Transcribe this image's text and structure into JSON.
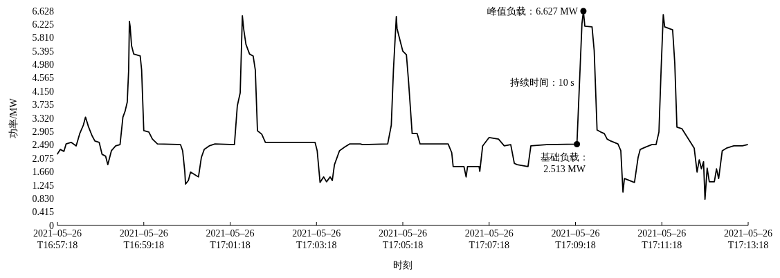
{
  "chart_data": {
    "type": "line",
    "xlabel": "时刻",
    "ylabel": "功率/MW",
    "xlim": [
      "2021-05-26T16:57:18",
      "2021-05-26T17:13:18"
    ],
    "xticks": [
      {
        "value": "2021-05-26T16:57:18",
        "label": "2021–05–26 T16:57:18"
      },
      {
        "value": "2021-05-26T16:59:18",
        "label": "2021–05–26 T16:59:18"
      },
      {
        "value": "2021-05-26T17:01:18",
        "label": "2021–05–26 T17:01:18"
      },
      {
        "value": "2021-05-26T17:03:18",
        "label": "2021–05–26 T17:03:18"
      },
      {
        "value": "2021-05-26T17:05:18",
        "label": "2021–05–26 T17:05:18"
      },
      {
        "value": "2021-05-26T17:07:18",
        "label": "2021–05–26 T17:07:18"
      },
      {
        "value": "2021-05-26T17:09:18",
        "label": "2021–05–26 T17:09:18"
      },
      {
        "value": "2021-05-26T17:11:18",
        "label": "2021–05–26 T17:11:18"
      },
      {
        "value": "2021-05-26T17:13:18",
        "label": "2021–05–26 T17:13:18"
      }
    ],
    "ylim": [
      0,
      6.628
    ],
    "yticks": [
      0,
      0.415,
      {
        "value": 0.83,
        "label": "0.830"
      },
      1.245,
      {
        "value": 1.66,
        "label": "1.660"
      },
      2.075,
      {
        "value": 2.49,
        "label": "2.490"
      },
      2.905,
      {
        "value": 3.32,
        "label": "3.320"
      },
      3.735,
      {
        "value": 4.15,
        "label": "4.150"
      },
      4.565,
      {
        "value": 4.98,
        "label": "4.980"
      },
      5.395,
      {
        "value": 5.81,
        "label": "5.810"
      },
      6.225,
      6.628
    ],
    "grid": false,
    "series": [
      {
        "color": "#000000",
        "marker": "none",
        "line_style": "solid",
        "x": [
          "2021-05-26T16:57:18",
          "2021-05-26T16:57:22",
          "2021-05-26T16:57:27",
          "2021-05-26T16:57:30",
          "2021-05-26T16:57:37",
          "2021-05-26T16:57:44",
          "2021-05-26T16:57:49",
          "2021-05-26T16:57:54",
          "2021-05-26T16:57:57",
          "2021-05-26T16:58:01",
          "2021-05-26T16:58:06",
          "2021-05-26T16:58:10",
          "2021-05-26T16:58:16",
          "2021-05-26T16:58:20",
          "2021-05-26T16:58:25",
          "2021-05-26T16:58:28",
          "2021-05-26T16:58:33",
          "2021-05-26T16:58:39",
          "2021-05-26T16:58:45",
          "2021-05-26T16:58:49",
          "2021-05-26T16:58:52",
          "2021-05-26T16:58:55",
          "2021-05-26T16:58:57",
          "2021-05-26T16:58:58",
          "2021-05-26T16:58:59",
          "2021-05-26T16:59:01",
          "2021-05-26T16:59:04",
          "2021-05-26T16:59:13",
          "2021-05-26T16:59:15",
          "2021-05-26T16:59:18",
          "2021-05-26T16:59:25",
          "2021-05-26T16:59:30",
          "2021-05-26T16:59:37",
          "2021-05-26T17:00:09",
          "2021-05-26T17:00:12",
          "2021-05-26T17:00:15",
          "2021-05-26T17:00:16",
          "2021-05-26T17:00:20",
          "2021-05-26T17:00:23",
          "2021-05-26T17:00:31",
          "2021-05-26T17:00:34",
          "2021-05-26T17:00:38",
          "2021-05-26T17:00:42",
          "2021-05-26T17:00:49",
          "2021-05-26T17:00:57",
          "2021-05-26T17:01:24",
          "2021-05-26T17:01:28",
          "2021-05-26T17:01:32",
          "2021-05-26T17:01:35",
          "2021-05-26T17:01:37",
          "2021-05-26T17:01:40",
          "2021-05-26T17:01:45",
          "2021-05-26T17:01:50",
          "2021-05-26T17:01:53",
          "2021-05-26T17:01:56",
          "2021-05-26T17:02:02",
          "2021-05-26T17:02:07",
          "2021-05-26T17:03:16",
          "2021-05-26T17:03:19",
          "2021-05-26T17:03:23",
          "2021-05-26T17:03:28",
          "2021-05-26T17:03:32",
          "2021-05-26T17:03:37",
          "2021-05-26T17:03:40",
          "2021-05-26T17:03:43",
          "2021-05-26T17:03:50",
          "2021-05-26T17:03:57",
          "2021-05-26T17:04:04",
          "2021-05-26T17:04:19",
          "2021-05-26T17:04:22",
          "2021-05-26T17:04:57",
          "2021-05-26T17:05:02",
          "2021-05-26T17:05:05",
          "2021-05-26T17:05:09",
          "2021-05-26T17:05:10",
          "2021-05-26T17:05:13",
          "2021-05-26T17:05:18",
          "2021-05-26T17:05:23",
          "2021-05-26T17:05:26",
          "2021-05-26T17:05:31",
          "2021-05-26T17:05:38",
          "2021-05-26T17:05:42",
          "2021-05-26T17:06:21",
          "2021-05-26T17:06:26",
          "2021-05-26T17:06:28",
          "2021-05-26T17:06:43",
          "2021-05-26T17:06:46",
          "2021-05-26T17:06:48",
          "2021-05-26T17:07:04",
          "2021-05-26T17:07:05",
          "2021-05-26T17:07:09",
          "2021-05-26T17:07:18",
          "2021-05-26T17:07:31",
          "2021-05-26T17:07:39",
          "2021-05-26T17:07:48",
          "2021-05-26T17:07:53",
          "2021-05-26T17:07:57",
          "2021-05-26T17:08:12",
          "2021-05-26T17:08:16",
          "2021-05-26T17:08:38",
          "2021-05-26T17:09:20",
          "2021-05-26T17:09:23",
          "2021-05-26T17:09:27",
          "2021-05-26T17:09:29",
          "2021-05-26T17:09:31",
          "2021-05-26T17:09:41",
          "2021-05-26T17:09:44",
          "2021-05-26T17:09:48",
          "2021-05-26T17:09:53",
          "2021-05-26T17:09:58",
          "2021-05-26T17:10:02",
          "2021-05-26T17:10:07",
          "2021-05-26T17:10:17",
          "2021-05-26T17:10:21",
          "2021-05-26T17:10:24",
          "2021-05-26T17:10:26",
          "2021-05-26T17:10:40",
          "2021-05-26T17:10:45",
          "2021-05-26T17:10:48",
          "2021-05-26T17:10:55",
          "2021-05-26T17:11:04",
          "2021-05-26T17:11:10",
          "2021-05-26T17:11:14",
          "2021-05-26T17:11:17",
          "2021-05-26T17:11:20",
          "2021-05-26T17:11:22",
          "2021-05-26T17:11:33",
          "2021-05-26T17:11:36",
          "2021-05-26T17:11:39",
          "2021-05-26T17:11:46",
          "2021-05-26T17:11:53",
          "2021-05-26T17:12:03",
          "2021-05-26T17:12:07",
          "2021-05-26T17:12:10",
          "2021-05-26T17:12:13",
          "2021-05-26T17:12:16",
          "2021-05-26T17:12:18",
          "2021-05-26T17:12:21",
          "2021-05-26T17:12:24",
          "2021-05-26T17:12:31",
          "2021-05-26T17:12:34",
          "2021-05-26T17:12:37",
          "2021-05-26T17:12:42",
          "2021-05-26T17:12:48",
          "2021-05-26T17:12:58",
          "2021-05-26T17:13:10",
          "2021-05-26T17:13:17"
        ],
        "values": [
          2.21,
          2.35,
          2.29,
          2.52,
          2.57,
          2.46,
          2.84,
          3.1,
          3.35,
          3.06,
          2.78,
          2.61,
          2.57,
          2.2,
          2.14,
          1.88,
          2.31,
          2.46,
          2.5,
          3.35,
          3.53,
          3.81,
          4.81,
          6.31,
          6.16,
          5.56,
          5.3,
          5.24,
          4.81,
          2.93,
          2.89,
          2.67,
          2.52,
          2.5,
          2.31,
          1.67,
          1.28,
          1.39,
          1.65,
          1.54,
          1.5,
          2.1,
          2.35,
          2.46,
          2.52,
          2.5,
          3.7,
          4.1,
          6.48,
          6.05,
          5.6,
          5.3,
          5.24,
          4.81,
          2.93,
          2.82,
          2.57,
          2.57,
          2.31,
          1.33,
          1.5,
          1.35,
          1.5,
          1.39,
          1.88,
          2.31,
          2.42,
          2.52,
          2.52,
          2.5,
          2.52,
          3.1,
          4.81,
          6.46,
          6.09,
          5.82,
          5.39,
          5.28,
          4.45,
          2.84,
          2.84,
          2.52,
          2.52,
          2.25,
          1.82,
          1.82,
          1.5,
          1.82,
          1.82,
          1.67,
          2.46,
          2.72,
          2.67,
          2.46,
          2.5,
          1.92,
          1.88,
          1.82,
          2.46,
          2.5,
          2.513,
          4.1,
          6.24,
          6.627,
          6.16,
          6.14,
          5.41,
          2.95,
          2.89,
          2.84,
          2.67,
          2.61,
          2.52,
          2.31,
          1.03,
          1.45,
          1.33,
          2.1,
          2.35,
          2.42,
          2.5,
          2.5,
          2.89,
          4.81,
          6.52,
          6.14,
          6.05,
          5.02,
          3.04,
          2.99,
          2.74,
          2.39,
          1.65,
          2.03,
          1.75,
          1.97,
          0.81,
          1.77,
          1.35,
          1.35,
          1.75,
          1.45,
          2.31,
          2.39,
          2.46,
          2.46,
          2.5
        ]
      },
      {
        "type": "scatter",
        "color": "#000000",
        "marker": "circle",
        "x": [
          "2021-05-26T17:09:20",
          "2021-05-26T17:09:29"
        ],
        "values": [
          2.513,
          6.627
        ]
      }
    ],
    "annotations": [
      {
        "text": "峰值负载：6.627 MW",
        "x": "2021-05-26T17:09:29",
        "y": 6.627
      },
      {
        "text": "持续时间：10 s",
        "x": "2021-05-26T17:09:20",
        "y": 4.42
      },
      {
        "text": "基础负载：\n2.513 MW",
        "x": "2021-05-26T17:09:20",
        "y": 2.513
      }
    ]
  }
}
